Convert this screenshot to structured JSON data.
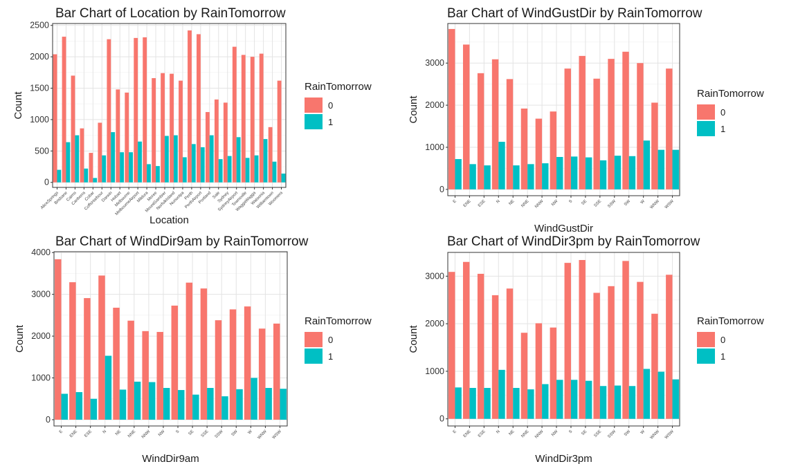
{
  "colors": {
    "0": "#F8766D",
    "1": "#00BFC4"
  },
  "chart_data": [
    {
      "type": "bar",
      "title": "Bar Chart of Location by RainTomorrow",
      "xlabel": "Location",
      "ylabel": "Count",
      "ylim": [
        -80,
        2530
      ],
      "yticks": [
        0,
        500,
        1000,
        1500,
        2000,
        2500
      ],
      "grid": true,
      "legend": {
        "title": "RainTomorrow",
        "entries": [
          "0",
          "1"
        ],
        "position": "right"
      },
      "categories": [
        "AliceSprings",
        "Brisbane",
        "Cairns",
        "Canberra",
        "Cobar",
        "CoffsHarbour",
        "Darwin",
        "Hobart",
        "Melbourne",
        "MelbourneAirport",
        "Mildura",
        "Moree",
        "MountGambier",
        "NorfolkIsland",
        "Nuriootpa",
        "Perth",
        "PerthAirport",
        "Portland",
        "Sale",
        "Sydney",
        "SydneyAirport",
        "Townsville",
        "WaggaWagga",
        "Watsonia",
        "Williamtown",
        "Woomera"
      ],
      "series": [
        {
          "name": "0",
          "values": [
            2040,
            2320,
            1700,
            860,
            470,
            950,
            2280,
            1480,
            1430,
            2300,
            2310,
            1660,
            1740,
            1730,
            1620,
            2420,
            2360,
            1120,
            1320,
            1270,
            2160,
            2030,
            2000,
            2050,
            880,
            1620
          ]
        },
        {
          "name": "1",
          "values": [
            200,
            640,
            750,
            220,
            70,
            430,
            800,
            480,
            480,
            650,
            290,
            260,
            740,
            750,
            400,
            610,
            560,
            750,
            370,
            420,
            720,
            390,
            430,
            690,
            330,
            140
          ]
        }
      ]
    },
    {
      "type": "bar",
      "title": "Bar Chart of WindGustDir by RainTomorrow",
      "xlabel": "WindGustDir",
      "ylabel": "Count",
      "ylim": [
        -150,
        3940
      ],
      "yticks": [
        0,
        1000,
        2000,
        3000
      ],
      "grid": true,
      "legend": {
        "title": "RainTomorrow",
        "entries": [
          "0",
          "1"
        ],
        "position": "right"
      },
      "categories": [
        "E",
        "ENE",
        "ESE",
        "N",
        "NE",
        "NNE",
        "NNW",
        "NW",
        "S",
        "SE",
        "SSE",
        "SSW",
        "SW",
        "W",
        "WNW",
        "WSW"
      ],
      "series": [
        {
          "name": "0",
          "values": [
            3810,
            3440,
            2760,
            3090,
            2620,
            1920,
            1680,
            1850,
            2870,
            3170,
            2630,
            3100,
            3270,
            3000,
            2060,
            2870
          ]
        },
        {
          "name": "1",
          "values": [
            720,
            600,
            570,
            1130,
            570,
            600,
            620,
            770,
            780,
            760,
            690,
            800,
            790,
            1160,
            940,
            940
          ]
        }
      ]
    },
    {
      "type": "bar",
      "title": "Bar Chart of WindDir9am by RainTomorrow",
      "xlabel": "WindDir9am",
      "ylabel": "Count",
      "ylim": [
        -150,
        4020
      ],
      "yticks": [
        0,
        1000,
        2000,
        3000,
        4000
      ],
      "grid": true,
      "legend": {
        "title": "RainTomorrow",
        "entries": [
          "0",
          "1"
        ],
        "position": "right"
      },
      "categories": [
        "E",
        "ENE",
        "ESE",
        "N",
        "NE",
        "NNE",
        "NNW",
        "NW",
        "S",
        "SE",
        "SSE",
        "SSW",
        "SW",
        "W",
        "WNW",
        "WSW"
      ],
      "series": [
        {
          "name": "0",
          "values": [
            3840,
            3290,
            2910,
            3450,
            2680,
            2370,
            2120,
            2100,
            2730,
            3280,
            3140,
            2380,
            2640,
            2710,
            2180,
            2300
          ]
        },
        {
          "name": "1",
          "values": [
            620,
            660,
            500,
            1530,
            720,
            910,
            900,
            760,
            710,
            600,
            760,
            560,
            730,
            1000,
            760,
            740
          ]
        }
      ]
    },
    {
      "type": "bar",
      "title": "Bar Chart of WindDir3pm by RainTomorrow",
      "xlabel": "WindDir3pm",
      "ylabel": "Count",
      "ylim": [
        -150,
        3500
      ],
      "yticks": [
        0,
        1000,
        2000,
        3000
      ],
      "grid": true,
      "legend": {
        "title": "RainTomorrow",
        "entries": [
          "0",
          "1"
        ],
        "position": "right"
      },
      "categories": [
        "E",
        "ENE",
        "ESE",
        "N",
        "NE",
        "NNE",
        "NNW",
        "NW",
        "S",
        "SE",
        "SSE",
        "SSW",
        "SW",
        "W",
        "WNW",
        "WSW"
      ],
      "series": [
        {
          "name": "0",
          "values": [
            3090,
            3300,
            3050,
            2600,
            2740,
            1810,
            2010,
            1920,
            3280,
            3340,
            2650,
            2790,
            3320,
            2880,
            2210,
            3030
          ]
        },
        {
          "name": "1",
          "values": [
            660,
            650,
            650,
            1030,
            650,
            620,
            730,
            820,
            820,
            800,
            690,
            700,
            690,
            1050,
            990,
            830
          ]
        }
      ]
    }
  ]
}
